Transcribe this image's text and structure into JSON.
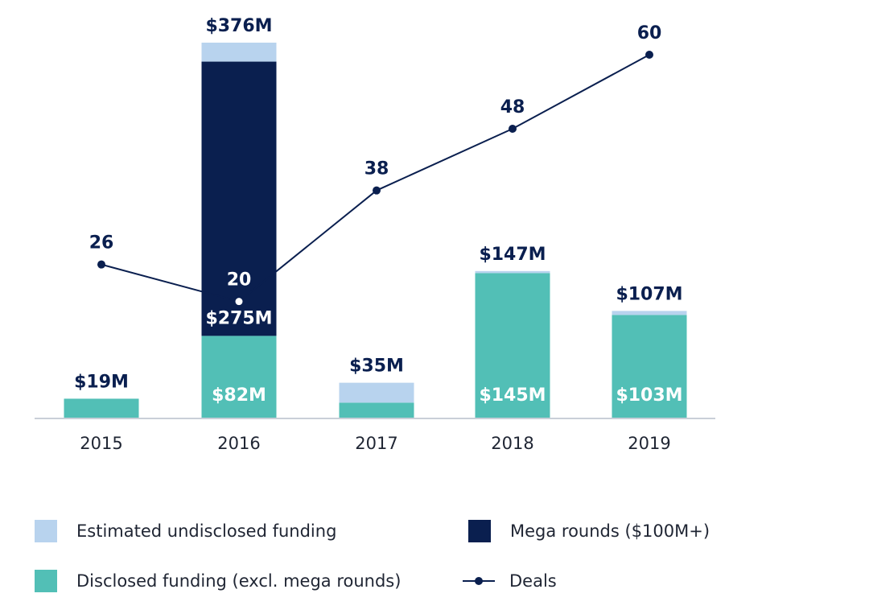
{
  "chart_data": {
    "type": "bar",
    "categories": [
      "2015",
      "2016",
      "2017",
      "2018",
      "2019"
    ],
    "series": [
      {
        "key": "disclosed",
        "name": "Disclosed funding (excl. mega rounds)",
        "color": "#52bfb6",
        "values": [
          19,
          82,
          15,
          145,
          103
        ]
      },
      {
        "key": "mega",
        "name": "Mega rounds ($100M+)",
        "color": "#0a1f4f",
        "values": [
          0,
          275,
          0,
          0,
          0
        ]
      },
      {
        "key": "undisclosed",
        "name": "Estimated undisclosed funding",
        "color": "#b8d3ee",
        "values": [
          0,
          19,
          20,
          2,
          4
        ]
      }
    ],
    "totals": [
      19,
      376,
      35,
      147,
      107
    ],
    "total_labels": [
      "$19M",
      "$376M",
      "$35M",
      "$147M",
      "$107M"
    ],
    "disclosed_labels": [
      "",
      "$82M",
      "",
      "$145M",
      "$103M"
    ],
    "mega_labels": [
      "",
      "$275M",
      "",
      "",
      ""
    ],
    "deals": {
      "name": "Deals",
      "color": "#0a1f4f",
      "values": [
        26,
        20,
        38,
        48,
        60
      ]
    },
    "ylim": [
      0,
      376
    ],
    "deals_ylim": [
      0,
      60
    ],
    "grid": false,
    "legend_position": "bottom"
  },
  "legend": {
    "undisclosed": "Estimated undisclosed funding",
    "mega": "Mega rounds ($100M+)",
    "disclosed": "Disclosed funding (excl. mega rounds)",
    "deals": "Deals"
  }
}
